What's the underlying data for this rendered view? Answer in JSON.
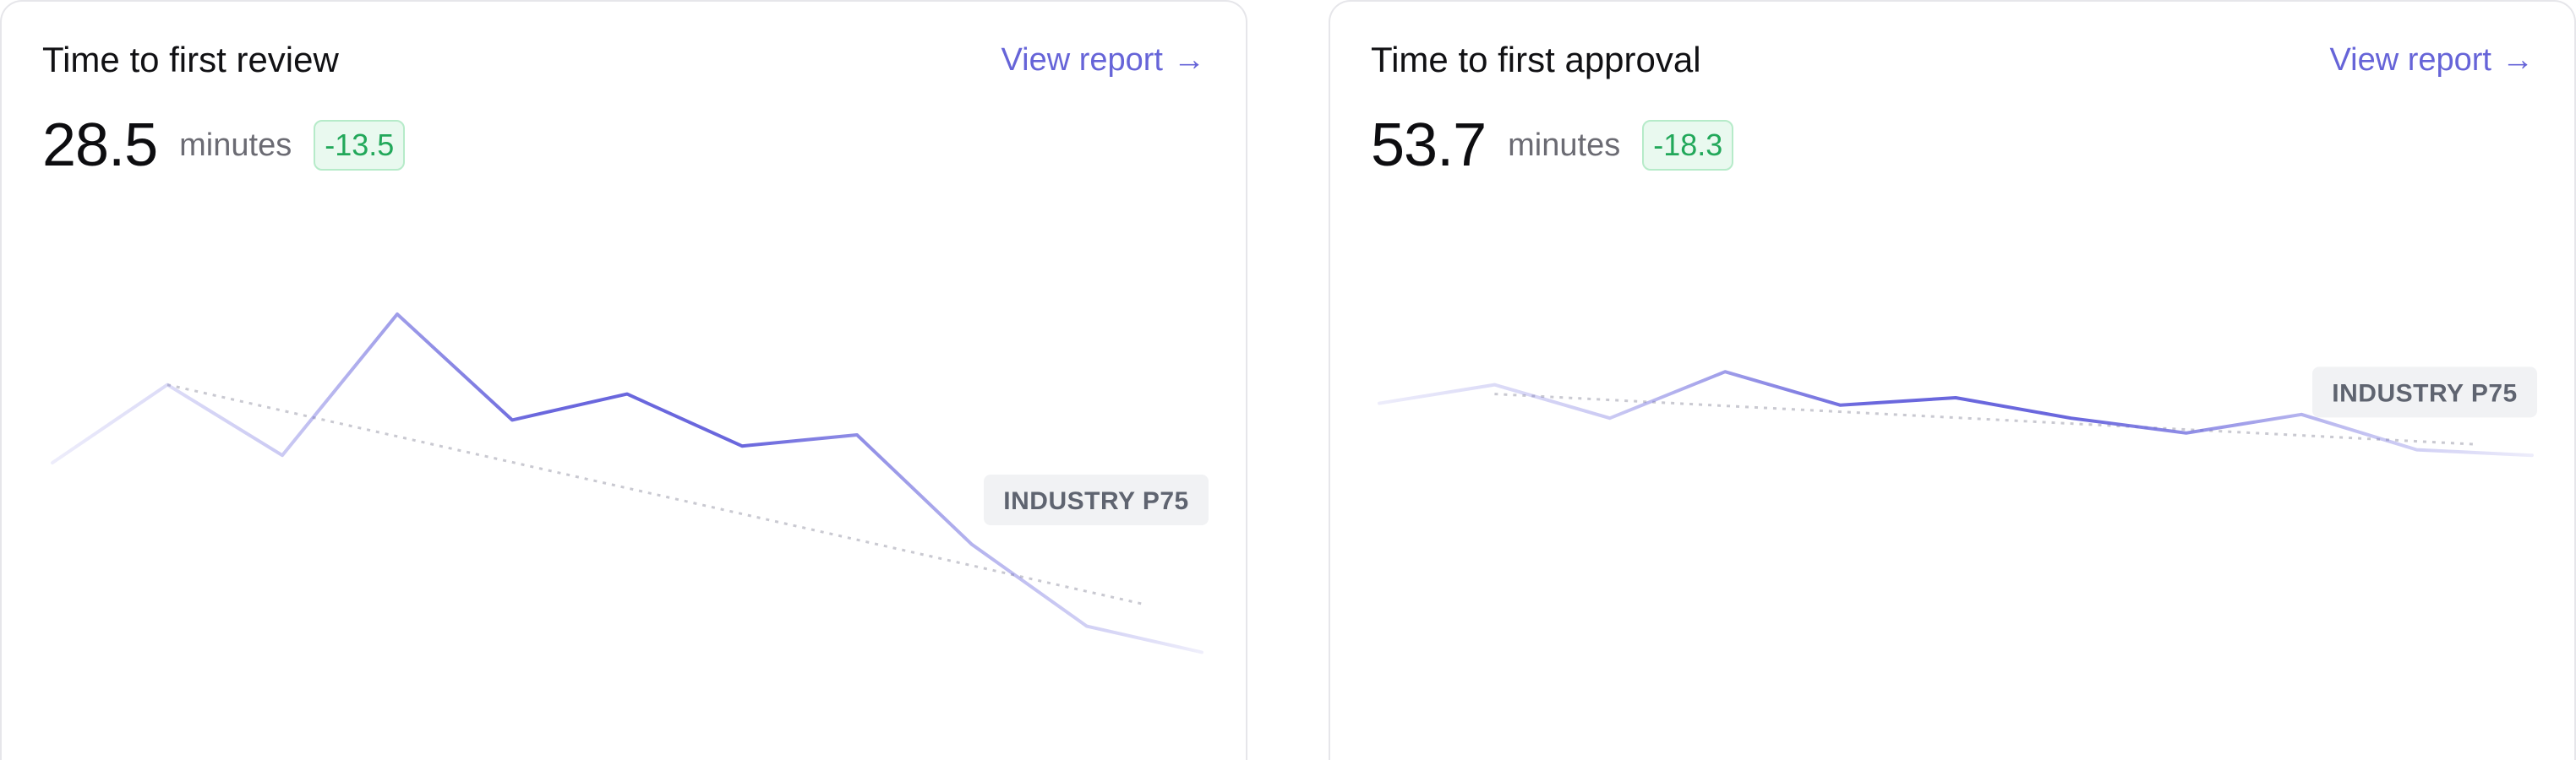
{
  "cards": [
    {
      "title": "Time to first review",
      "link_label": "View report",
      "link_arrow": "→",
      "value": "28.5",
      "unit": "minutes",
      "delta": "-13.5",
      "benchmark_label": "INDUSTRY P75"
    },
    {
      "title": "Time to first approval",
      "link_label": "View report",
      "link_arrow": "→",
      "value": "53.7",
      "unit": "minutes",
      "delta": "-18.3",
      "benchmark_label": "INDUSTRY P75"
    }
  ],
  "colors": {
    "accent": "#6664d8",
    "line": "#6a67dd",
    "delta_text": "#22a85a",
    "delta_bg": "#e9f9ef",
    "delta_border": "#b6ebc9",
    "badge_bg": "#f1f2f4",
    "badge_text": "#5f6470"
  },
  "chart_data": [
    {
      "type": "line",
      "series": [
        {
          "values": [
            0.2,
            0.62,
            0.24,
            1.0,
            0.43,
            0.57,
            0.29,
            0.35,
            -0.24,
            -0.68,
            -0.82
          ]
        }
      ],
      "trend": [
        0.62,
        -0.56
      ],
      "benchmark": 0.0
    },
    {
      "type": "line",
      "series": [
        {
          "values": [
            0.52,
            0.62,
            0.44,
            0.69,
            0.51,
            0.55,
            0.44,
            0.36,
            0.46,
            0.27,
            0.24
          ]
        }
      ],
      "trend": [
        0.57,
        0.3
      ],
      "benchmark": 0.58
    }
  ]
}
